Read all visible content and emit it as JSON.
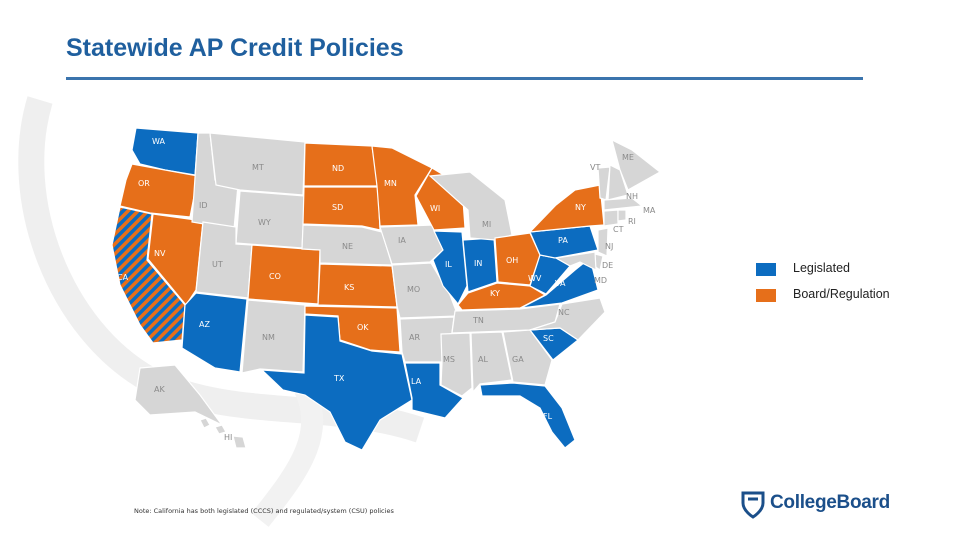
{
  "title": "Statewide AP Credit Policies",
  "colors": {
    "legislated": "#0c6cc0",
    "board_regulation": "#e66f1a",
    "none": "#d6d6d6",
    "title": "#1f5f9e",
    "brand": "#1b4f8a"
  },
  "legend": [
    {
      "label": "Legislated",
      "color": "#0c6cc0"
    },
    {
      "label": "Board/Regulation",
      "color": "#e66f1a"
    }
  ],
  "states": {
    "WA": "legislated",
    "OR": "board_regulation",
    "CA": "both",
    "NV": "board_regulation",
    "ID": "none",
    "MT": "none",
    "WY": "none",
    "UT": "none",
    "CO": "board_regulation",
    "AZ": "legislated",
    "NM": "none",
    "ND": "board_regulation",
    "SD": "board_regulation",
    "NE": "none",
    "KS": "board_regulation",
    "OK": "board_regulation",
    "TX": "legislated",
    "MN": "board_regulation",
    "IA": "none",
    "MO": "none",
    "AR": "none",
    "LA": "legislated",
    "WI": "board_regulation",
    "IL": "legislated",
    "IN": "legislated",
    "MI": "none",
    "OH": "board_regulation",
    "KY": "board_regulation",
    "TN": "none",
    "MS": "none",
    "AL": "none",
    "GA": "none",
    "FL": "legislated",
    "SC": "legislated",
    "NC": "none",
    "VA": "legislated",
    "WV": "legislated",
    "PA": "legislated",
    "NY": "board_regulation",
    "ME": "none",
    "VT": "none",
    "NH": "none",
    "MA": "none",
    "RI": "none",
    "CT": "none",
    "NJ": "none",
    "DE": "none",
    "MD": "none",
    "AK": "none",
    "HI": "none"
  },
  "state_labels": {
    "WA": "WA",
    "OR": "OR",
    "CA": "CA",
    "NV": "NV",
    "ID": "ID",
    "MT": "MT",
    "WY": "WY",
    "UT": "UT",
    "CO": "CO",
    "AZ": "AZ",
    "NM": "NM",
    "ND": "ND",
    "SD": "SD",
    "NE": "NE",
    "KS": "KS",
    "OK": "OK",
    "TX": "TX",
    "MN": "MN",
    "IA": "IA",
    "MO": "MO",
    "AR": "AR",
    "LA": "LA",
    "WI": "WI",
    "IL": "IL",
    "IN": "IN",
    "MI": "MI",
    "OH": "OH",
    "KY": "KY",
    "TN": "TN",
    "MS": "MS",
    "AL": "AL",
    "GA": "GA",
    "FL": "FL",
    "SC": "SC",
    "NC": "NC",
    "VA": "VA",
    "WV": "WV",
    "PA": "PA",
    "NY": "NY",
    "ME": "ME",
    "VT": "VT",
    "NH": "NH",
    "MA": "MA",
    "RI": "RI",
    "CT": "CT",
    "NJ": "NJ",
    "DE": "DE",
    "MD": "MD",
    "AK": "AK",
    "HI": "HI"
  },
  "note": "Note: California has both legislated (CCCS) and regulated/system (CSU) policies",
  "logo_text": "CollegeBoard",
  "icons": {
    "logo": "acorn-shield-icon"
  }
}
